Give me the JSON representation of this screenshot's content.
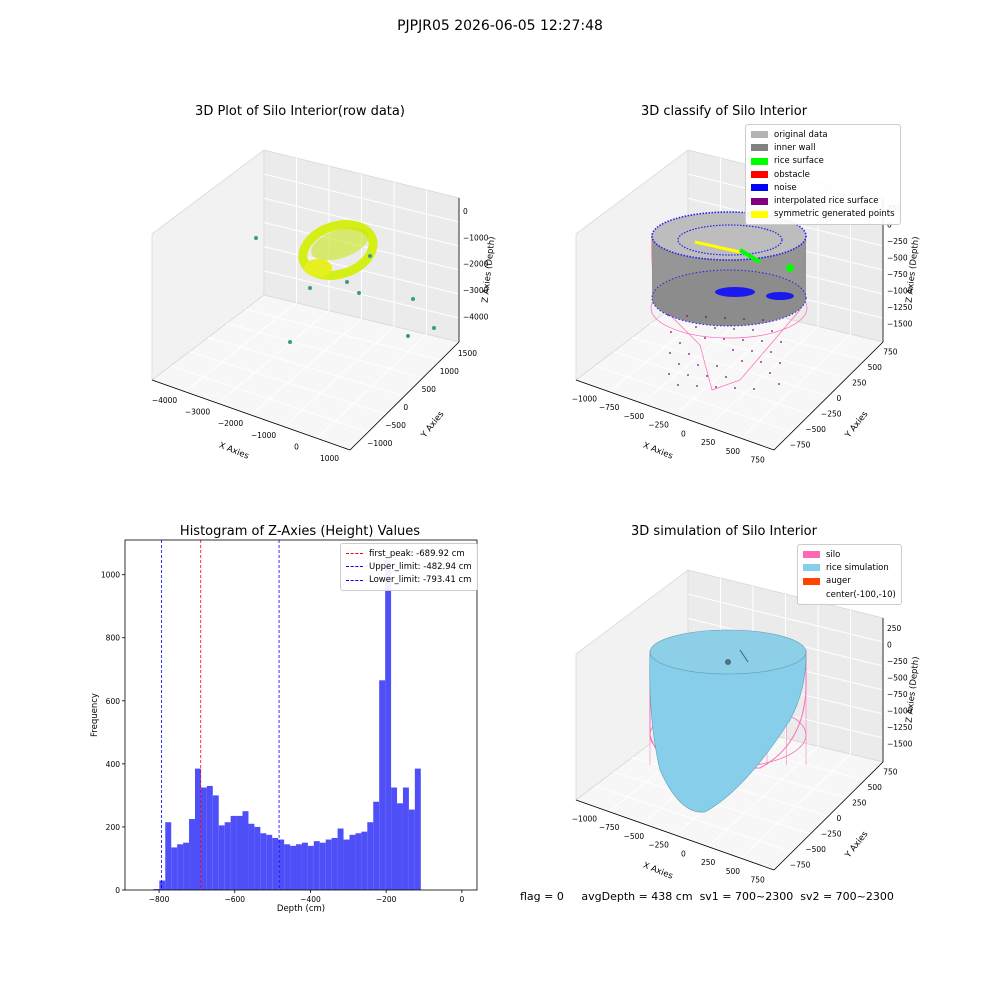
{
  "suptitle": "PJPJR05 2026-06-05 12:27:48",
  "footer": {
    "flag": "flag = 0",
    "avg": "avgDepth = 438 cm",
    "sv1": "sv1 = 700~2300",
    "sv2": "sv2 = 700~2300"
  },
  "chart_data": [
    {
      "type": "scatter",
      "title": "3D Plot of Silo Interior(row data)",
      "xlabel": "X Axies",
      "ylabel": "Y Axies",
      "zlabel": "Z Axies (Depth)",
      "x_ticks": [
        "−4000",
        "−3000",
        "−2000",
        "−1000",
        "0",
        "1000"
      ],
      "y_ticks": [
        "−1000",
        "−500",
        "0",
        "500",
        "1000",
        "1500"
      ],
      "z_ticks": [
        "0",
        "−1000",
        "−2000",
        "−3000",
        "−4000"
      ],
      "colors": {
        "surface": "#d4ee16",
        "outlier": "#3a9a8a"
      }
    },
    {
      "type": "scatter",
      "title": "3D classify of Silo Interior",
      "xlabel": "X Axies",
      "ylabel": "Y Axies",
      "zlabel": "Z Axies (Depth)",
      "x_ticks": [
        "−1000",
        "−750",
        "−500",
        "−250",
        "0",
        "250",
        "500",
        "750"
      ],
      "y_ticks": [
        "−750",
        "−500",
        "−250",
        "0",
        "250",
        "500",
        "750"
      ],
      "z_ticks": [
        "250",
        "0",
        "−250",
        "−500",
        "−750",
        "−1000",
        "−1250",
        "−1500"
      ],
      "legend": [
        {
          "label": "original data",
          "color": "#b3b3b3"
        },
        {
          "label": "inner wall",
          "color": "#808080"
        },
        {
          "label": "rice surface",
          "color": "#00ff00"
        },
        {
          "label": "obstacle",
          "color": "#ff0000"
        },
        {
          "label": "noise",
          "color": "#0000ff"
        },
        {
          "label": "interpolated rice surface",
          "color": "#800080"
        },
        {
          "label": "symmetric generated points",
          "color": "#ffff00"
        }
      ]
    },
    {
      "type": "bar",
      "title": "Histogram of Z-Axies (Height) Values",
      "xlabel": "Depth (cm)",
      "ylabel": "Frequency",
      "xlim": [
        -890,
        40
      ],
      "ylim": [
        0,
        1110
      ],
      "x_ticks": [
        -800,
        -600,
        -400,
        -200,
        0
      ],
      "x_tick_labels": [
        "−800",
        "−600",
        "−400",
        "−200",
        "0"
      ],
      "y_ticks": [
        0,
        200,
        400,
        600,
        800,
        1000
      ],
      "bin_start": -815,
      "bin_width": 15.7,
      "values": [
        3,
        30,
        215,
        135,
        145,
        150,
        225,
        385,
        325,
        330,
        300,
        205,
        215,
        235,
        235,
        250,
        210,
        200,
        180,
        175,
        165,
        160,
        145,
        140,
        145,
        150,
        140,
        155,
        150,
        160,
        165,
        195,
        160,
        175,
        180,
        185,
        215,
        280,
        665,
        1045,
        325,
        275,
        325,
        255,
        385
      ],
      "bar_color": "#4f4ff7",
      "vlines": [
        {
          "label": "first_peak: -689.92 cm",
          "x": -689.92,
          "color": "#ff0000"
        },
        {
          "label": "Upper_limit: -482.94 cm",
          "x": -482.94,
          "color": "#0000ff"
        },
        {
          "label": "Lower_limit: -793.41 cm",
          "x": -793.41,
          "color": "#0000ff"
        }
      ]
    },
    {
      "type": "area",
      "title": "3D simulation of Silo Interior",
      "xlabel": "X Axies",
      "ylabel": "Y Axies",
      "zlabel": "Z Axies (Depth)",
      "x_ticks": [
        "−1000",
        "−750",
        "−500",
        "−250",
        "0",
        "250",
        "500",
        "750"
      ],
      "y_ticks": [
        "−750",
        "−500",
        "−250",
        "0",
        "250",
        "500",
        "750"
      ],
      "z_ticks": [
        "250",
        "0",
        "−250",
        "−500",
        "−750",
        "−1000",
        "−1250",
        "−1500"
      ],
      "legend": [
        {
          "label": "silo",
          "color": "#ff69b4"
        },
        {
          "label": "rice simulation",
          "color": "#87ceeb"
        },
        {
          "label": "auger",
          "color": "#ff4500"
        },
        {
          "label": "center(-100,-10)",
          "color": ""
        }
      ]
    }
  ]
}
